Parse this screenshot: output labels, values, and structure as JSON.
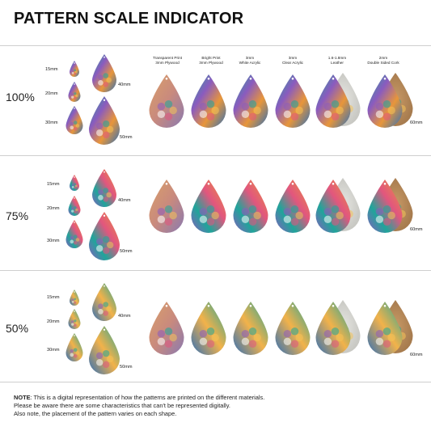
{
  "title": "PATTERN SCALE INDICATOR",
  "headers": [
    {
      "l1": "Transparent Print",
      "l2": "3mm Plywood"
    },
    {
      "l1": "Bright Print",
      "l2": "3mm Plywood"
    },
    {
      "l1": "3mm",
      "l2": "White Acrylic"
    },
    {
      "l1": "3mm",
      "l2": "Clear Acrylic"
    },
    {
      "l1": "1.6-1.8mm",
      "l2": "Leather"
    },
    {
      "l1": "2mm",
      "l2": "Double Sided Cork"
    }
  ],
  "sizes": {
    "s15": "15mm",
    "s20": "20mm",
    "s30": "30mm",
    "s40": "40mm",
    "s50": "50mm",
    "s60": "60mm"
  },
  "rows": [
    {
      "pct": "100%"
    },
    {
      "pct": "75%"
    },
    {
      "pct": "50%"
    }
  ],
  "note": {
    "label": "NOTE",
    "line1": ": This is a digital representation of how the patterns are printed on the different materials.",
    "line2": "Please be aware there are some characteristics that can't be represented digitally.",
    "line3": "Also note, the placement of the pattern varies on each shape."
  },
  "colors": {
    "orange": "#e8963a",
    "teal": "#1fa59a",
    "purple": "#8a5bbf",
    "pink": "#e2567e",
    "blue": "#2f6fb8",
    "leather": "#d8d8d4",
    "cork": "#b58a5a"
  }
}
